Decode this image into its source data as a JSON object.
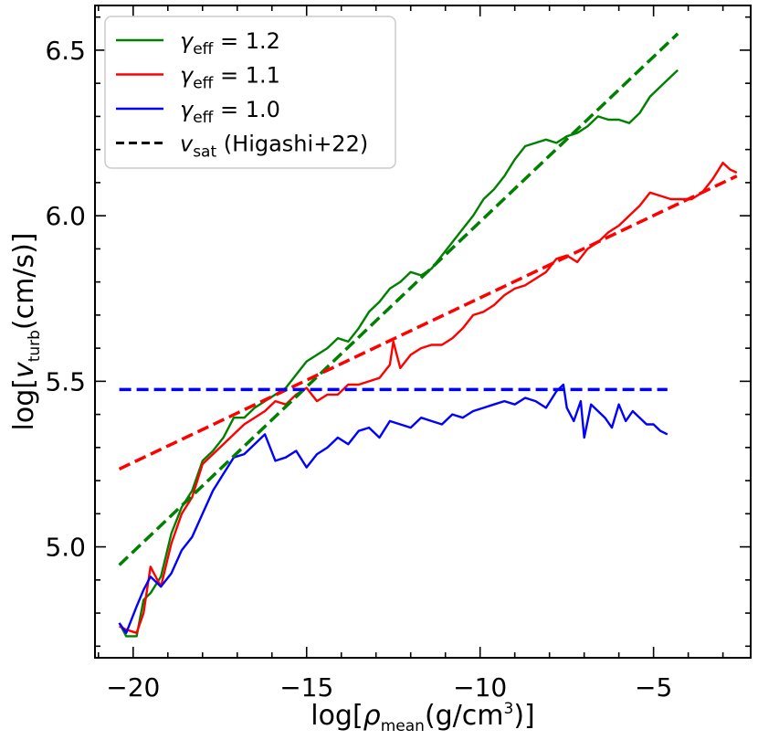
{
  "chart_data": {
    "type": "line",
    "xlabel": {
      "prefix": "log[",
      "symbol": "ρ",
      "sub": "mean",
      "units": "(g/cm",
      "sup": "3",
      "suffix": ")]"
    },
    "ylabel": {
      "prefix": "log[",
      "symbol": "v",
      "sub": "turb",
      "suffix": "(cm/s)]"
    },
    "xlim": [
      -21.1,
      -2.2
    ],
    "ylim": [
      4.665,
      6.635
    ],
    "xticks": [
      -20,
      -15,
      -10,
      -5
    ],
    "xtick_labels": [
      "−20",
      "−15",
      "−10",
      "−5"
    ],
    "yticks": [
      5.0,
      5.5,
      6.0,
      6.5
    ],
    "ytick_labels": [
      "5.0",
      "5.5",
      "6.0",
      "6.5"
    ],
    "legend_position": "top-left",
    "legend": [
      {
        "id": "g12",
        "symbol": "γ",
        "sub": "eff",
        "text": " = 1.2",
        "color": "#008000",
        "style": "solid"
      },
      {
        "id": "g11",
        "symbol": "γ",
        "sub": "eff",
        "text": " = 1.1",
        "color": "#ff0000",
        "style": "solid"
      },
      {
        "id": "g10",
        "symbol": "γ",
        "sub": "eff",
        "text": " = 1.0",
        "color": "#0000ff",
        "style": "solid"
      },
      {
        "id": "sat",
        "symbol": "v",
        "sub": "sat",
        "text": " (Higashi+22)",
        "color": "#000000",
        "style": "dashed"
      }
    ],
    "series": [
      {
        "name": "γeff = 1.2",
        "color": "#008000",
        "style": "solid",
        "x": [
          -20.4,
          -20.2,
          -19.9,
          -19.7,
          -19.5,
          -19.2,
          -18.9,
          -18.6,
          -18.3,
          -18.0,
          -17.7,
          -17.4,
          -17.1,
          -16.8,
          -16.5,
          -16.2,
          -15.9,
          -15.6,
          -15.3,
          -15.0,
          -14.7,
          -14.4,
          -14.1,
          -13.8,
          -13.5,
          -13.2,
          -12.9,
          -12.6,
          -12.3,
          -12.0,
          -11.7,
          -11.4,
          -11.1,
          -10.8,
          -10.5,
          -10.2,
          -9.9,
          -9.6,
          -9.3,
          -9.0,
          -8.7,
          -8.4,
          -8.1,
          -7.8,
          -7.5,
          -7.2,
          -6.9,
          -6.6,
          -6.3,
          -6.0,
          -5.7,
          -5.4,
          -5.1,
          -4.8,
          -4.5,
          -4.3
        ],
        "y": [
          4.77,
          4.73,
          4.73,
          4.84,
          4.86,
          4.91,
          5.04,
          5.12,
          5.17,
          5.26,
          5.29,
          5.33,
          5.39,
          5.39,
          5.42,
          5.44,
          5.46,
          5.48,
          5.52,
          5.56,
          5.58,
          5.6,
          5.63,
          5.62,
          5.66,
          5.71,
          5.74,
          5.78,
          5.8,
          5.83,
          5.82,
          5.84,
          5.88,
          5.92,
          5.96,
          6.0,
          6.05,
          6.08,
          6.12,
          6.17,
          6.21,
          6.22,
          6.23,
          6.22,
          6.24,
          6.25,
          6.27,
          6.3,
          6.29,
          6.29,
          6.28,
          6.31,
          6.36,
          6.39,
          6.42,
          6.44
        ]
      },
      {
        "name": "γeff = 1.1",
        "color": "#ff0000",
        "style": "solid",
        "x": [
          -20.4,
          -20.2,
          -19.9,
          -19.7,
          -19.5,
          -19.2,
          -18.9,
          -18.6,
          -18.3,
          -18.0,
          -17.7,
          -17.4,
          -17.1,
          -16.8,
          -16.5,
          -16.2,
          -15.9,
          -15.6,
          -15.3,
          -15.0,
          -14.7,
          -14.4,
          -14.1,
          -13.8,
          -13.5,
          -13.2,
          -12.9,
          -12.6,
          -12.5,
          -12.3,
          -12.0,
          -11.7,
          -11.4,
          -11.1,
          -10.8,
          -10.5,
          -10.2,
          -9.9,
          -9.6,
          -9.3,
          -9.0,
          -8.7,
          -8.4,
          -8.1,
          -7.8,
          -7.5,
          -7.2,
          -6.9,
          -6.6,
          -6.3,
          -6.0,
          -5.7,
          -5.4,
          -5.1,
          -4.8,
          -4.5,
          -4.2,
          -3.9,
          -3.6,
          -3.3,
          -3.0,
          -2.8,
          -2.6
        ],
        "y": [
          4.76,
          4.75,
          4.74,
          4.8,
          4.94,
          4.88,
          5.01,
          5.1,
          5.15,
          5.25,
          5.28,
          5.31,
          5.34,
          5.37,
          5.39,
          5.41,
          5.44,
          5.43,
          5.46,
          5.48,
          5.44,
          5.46,
          5.46,
          5.49,
          5.49,
          5.5,
          5.51,
          5.55,
          5.62,
          5.54,
          5.58,
          5.6,
          5.61,
          5.61,
          5.63,
          5.66,
          5.7,
          5.71,
          5.73,
          5.76,
          5.78,
          5.79,
          5.81,
          5.83,
          5.87,
          5.88,
          5.86,
          5.9,
          5.92,
          5.95,
          5.97,
          6.0,
          6.03,
          6.07,
          6.06,
          6.05,
          6.05,
          6.05,
          6.07,
          6.11,
          6.16,
          6.14,
          6.13
        ]
      },
      {
        "name": "γeff = 1.0",
        "color": "#0000ff",
        "style": "solid",
        "x": [
          -20.4,
          -20.2,
          -19.9,
          -19.7,
          -19.5,
          -19.2,
          -18.9,
          -18.6,
          -18.3,
          -18.0,
          -17.7,
          -17.4,
          -17.1,
          -16.8,
          -16.5,
          -16.2,
          -15.9,
          -15.6,
          -15.3,
          -15.0,
          -14.7,
          -14.4,
          -14.1,
          -13.8,
          -13.5,
          -13.2,
          -12.9,
          -12.6,
          -12.3,
          -12.0,
          -11.7,
          -11.4,
          -11.1,
          -10.8,
          -10.5,
          -10.2,
          -9.9,
          -9.6,
          -9.3,
          -9.0,
          -8.7,
          -8.4,
          -8.1,
          -7.8,
          -7.6,
          -7.5,
          -7.3,
          -7.1,
          -7.0,
          -6.8,
          -6.6,
          -6.4,
          -6.2,
          -6.0,
          -5.8,
          -5.6,
          -5.4,
          -5.2,
          -5.0,
          -4.8,
          -4.6
        ],
        "y": [
          4.77,
          4.74,
          4.82,
          4.87,
          4.91,
          4.88,
          4.92,
          4.99,
          5.03,
          5.1,
          5.17,
          5.22,
          5.27,
          5.28,
          5.31,
          5.34,
          5.26,
          5.27,
          5.29,
          5.24,
          5.28,
          5.3,
          5.33,
          5.31,
          5.35,
          5.36,
          5.33,
          5.38,
          5.37,
          5.36,
          5.39,
          5.38,
          5.37,
          5.4,
          5.39,
          5.41,
          5.42,
          5.43,
          5.44,
          5.43,
          5.45,
          5.44,
          5.42,
          5.47,
          5.49,
          5.42,
          5.38,
          5.44,
          5.33,
          5.43,
          5.41,
          5.39,
          5.36,
          5.43,
          5.38,
          5.41,
          5.39,
          5.37,
          5.37,
          5.35,
          5.34
        ]
      },
      {
        "name": "vsat (Higashi+22), γeff = 1.2",
        "color": "#008000",
        "style": "dashed",
        "x": [
          -20.4,
          -4.3
        ],
        "y": [
          4.945,
          6.55
        ]
      },
      {
        "name": "vsat (Higashi+22), γeff = 1.1",
        "color": "#ff0000",
        "style": "dashed",
        "x": [
          -20.4,
          -2.6
        ],
        "y": [
          5.235,
          6.12
        ]
      },
      {
        "name": "vsat (Higashi+22), γeff = 1.0",
        "color": "#0000ff",
        "style": "dashed",
        "x": [
          -20.4,
          -4.6
        ],
        "y": [
          5.475,
          5.475
        ]
      }
    ]
  }
}
